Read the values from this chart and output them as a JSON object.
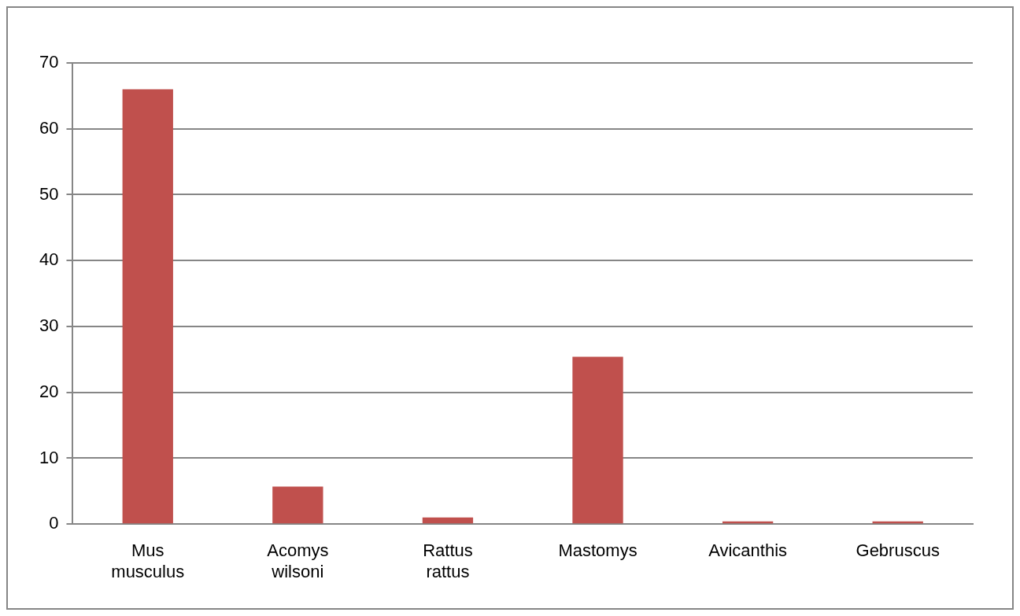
{
  "chart_data": {
    "type": "bar",
    "categories": [
      "Mus musculus",
      "Acomys wilsoni",
      "Rattus rattus",
      "Mastomys",
      "Avicanthis",
      "Gebruscus"
    ],
    "values": [
      66,
      5.7,
      1,
      25.4,
      0.4,
      0.4
    ],
    "color": "#c0504d",
    "ylim": [
      0,
      70
    ],
    "yticks": [
      0,
      10,
      20,
      30,
      40,
      50,
      60,
      70
    ],
    "grid": "y",
    "legend": false
  }
}
